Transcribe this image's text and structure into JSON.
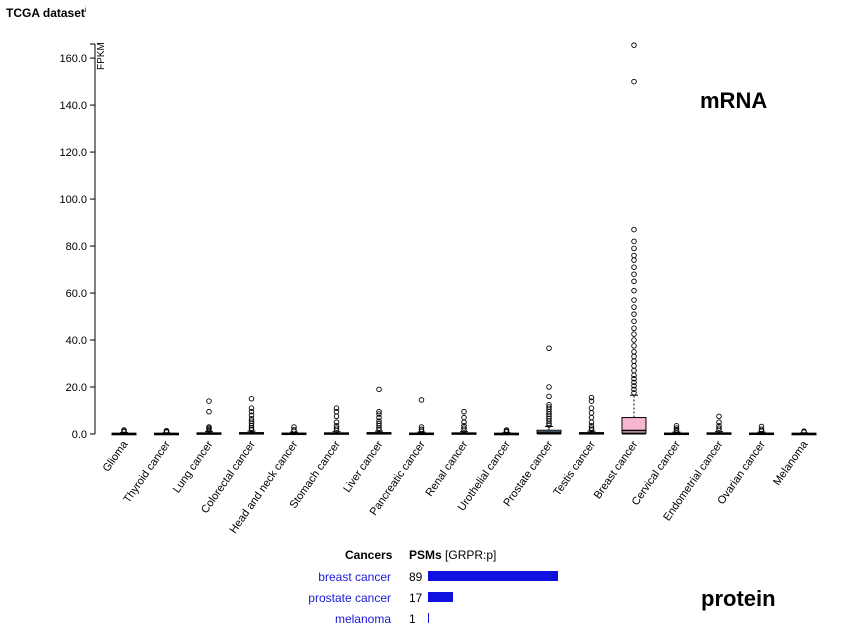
{
  "title": "TCGA dataset",
  "title_sup": "i",
  "mrna_label": "mRNA",
  "protein_label": "protein",
  "chart_data": {
    "type": "box",
    "ylabel": "FPKM",
    "ylim": [
      0,
      166
    ],
    "yticks": [
      "0.0",
      "20.0",
      "40.0",
      "60.0",
      "80.0",
      "100.0",
      "120.0",
      "140.0",
      "160.0"
    ],
    "box_colors": {
      "Prostate cancer": "#a8d8f0",
      "Breast cancer": "#f7b6cf",
      "default": "#ffffff"
    },
    "categories": [
      "Glioma",
      "Thyroid cancer",
      "Lung cancer",
      "Colorectal cancer",
      "Head and neck cancer",
      "Stomach cancer",
      "Liver cancer",
      "Pancreatic cancer",
      "Renal cancer",
      "Urothelial cancer",
      "Prostate cancer",
      "Testis cancer",
      "Breast cancer",
      "Cervical cancer",
      "Endometrial cancer",
      "Ovarian cancer",
      "Melanoma"
    ],
    "boxes": [
      {
        "q1": 0.1,
        "median": 0.2,
        "q3": 0.3,
        "whisker_high": 0.6,
        "outliers": [
          0.9,
          1.3,
          1.7
        ]
      },
      {
        "q1": 0.1,
        "median": 0.2,
        "q3": 0.3,
        "whisker_high": 0.5,
        "outliers": [
          0.8,
          1.1,
          1.4
        ]
      },
      {
        "q1": 0.1,
        "median": 0.3,
        "q3": 0.5,
        "whisker_high": 1.0,
        "outliers": [
          1.5,
          2.0,
          2.5,
          3.0,
          9.5,
          14.0
        ]
      },
      {
        "q1": 0.1,
        "median": 0.3,
        "q3": 0.6,
        "whisker_high": 1.2,
        "outliers": [
          1.8,
          2.5,
          3.5,
          4.5,
          5.5,
          6.5,
          8.0,
          9.5,
          11.0,
          15.0
        ]
      },
      {
        "q1": 0.1,
        "median": 0.2,
        "q3": 0.4,
        "whisker_high": 0.8,
        "outliers": [
          1.2,
          1.8,
          3.0
        ]
      },
      {
        "q1": 0.1,
        "median": 0.3,
        "q3": 0.5,
        "whisker_high": 1.0,
        "outliers": [
          1.5,
          2.5,
          3.5,
          5.0,
          7.5,
          9.5,
          11.0
        ]
      },
      {
        "q1": 0.1,
        "median": 0.3,
        "q3": 0.6,
        "whisker_high": 1.2,
        "outliers": [
          1.8,
          2.5,
          3.5,
          4.5,
          5.5,
          7.0,
          8.5,
          9.5,
          19.0
        ]
      },
      {
        "q1": 0.1,
        "median": 0.2,
        "q3": 0.4,
        "whisker_high": 0.8,
        "outliers": [
          1.2,
          2.0,
          3.0,
          14.5
        ]
      },
      {
        "q1": 0.1,
        "median": 0.3,
        "q3": 0.5,
        "whisker_high": 1.0,
        "outliers": [
          1.5,
          2.5,
          3.5,
          5.0,
          7.0,
          9.5
        ]
      },
      {
        "q1": 0.1,
        "median": 0.2,
        "q3": 0.3,
        "whisker_high": 0.6,
        "outliers": [
          0.9,
          1.3,
          1.7
        ]
      },
      {
        "q1": 0.3,
        "median": 0.8,
        "q3": 1.6,
        "whisker_high": 3.2,
        "outliers": [
          3.8,
          4.5,
          5.5,
          6.5,
          7.5,
          8.5,
          9.5,
          10.5,
          11.5,
          12.5,
          16.0,
          20.0,
          36.5
        ]
      },
      {
        "q1": 0.1,
        "median": 0.3,
        "q3": 0.6,
        "whisker_high": 1.2,
        "outliers": [
          1.8,
          2.5,
          3.5,
          5.0,
          7.0,
          9.0,
          11.0,
          14.0,
          15.5
        ]
      },
      {
        "q1": 0.4,
        "median": 1.5,
        "q3": 7.0,
        "whisker_high": 16.5,
        "outliers": [
          17.5,
          19.0,
          20.5,
          22.0,
          23.5,
          25.0,
          27.0,
          29.0,
          31.0,
          33.0,
          35.0,
          37.5,
          40.0,
          42.5,
          45.0,
          48.0,
          51.0,
          54.0,
          57.0,
          61.0,
          65.0,
          68.0,
          71.0,
          74.0,
          76.0,
          79.0,
          82.0,
          87.0,
          150.0,
          165.5
        ]
      },
      {
        "q1": 0.1,
        "median": 0.2,
        "q3": 0.4,
        "whisker_high": 0.8,
        "outliers": [
          1.2,
          1.8,
          2.5,
          3.5
        ]
      },
      {
        "q1": 0.1,
        "median": 0.3,
        "q3": 0.5,
        "whisker_high": 1.0,
        "outliers": [
          1.5,
          2.5,
          3.5,
          5.0,
          7.5
        ]
      },
      {
        "q1": 0.1,
        "median": 0.2,
        "q3": 0.4,
        "whisker_high": 0.8,
        "outliers": [
          1.2,
          2.0,
          3.2
        ]
      },
      {
        "q1": 0.1,
        "median": 0.2,
        "q3": 0.3,
        "whisker_high": 0.5,
        "outliers": [
          0.8,
          1.2
        ]
      }
    ]
  },
  "protein_table": {
    "header_cancers": "Cancers",
    "header_psms": "PSMs",
    "header_gene": "[GRPR:p]",
    "bar_color": "#1010e0",
    "rows": [
      {
        "cancer": "breast cancer",
        "psms": "89",
        "value": 89
      },
      {
        "cancer": "prostate cancer",
        "psms": "17",
        "value": 17
      },
      {
        "cancer": "melanoma",
        "psms": "1",
        "value": 1
      }
    ]
  }
}
